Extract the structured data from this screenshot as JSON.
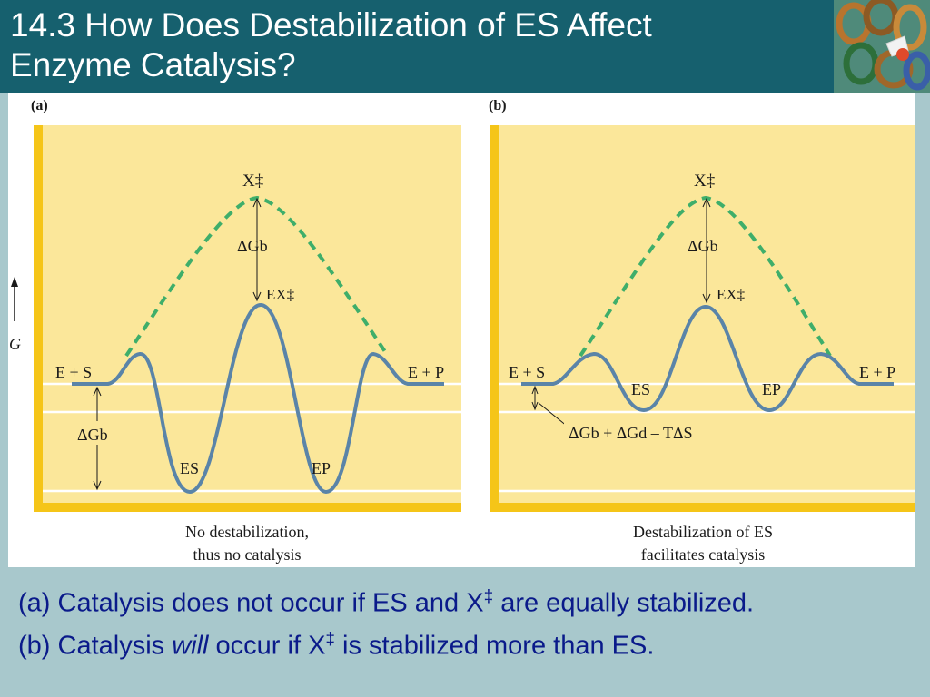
{
  "title": {
    "line1": "14.3 How Does Destabilization of ES Affect",
    "line2": "Enzyme Catalysis?"
  },
  "figure": {
    "axis_label": "G",
    "panel_a": {
      "tag": "(a)",
      "transition_state": "X‡",
      "dg_b_top": "ΔGb",
      "ex_label": "EX‡",
      "left_state": "E + S",
      "right_state": "E + P",
      "es_label": "ES",
      "ep_label": "EP",
      "dg_b_left": "ΔGb",
      "caption_line1": "No destabilization,",
      "caption_line2": "thus no catalysis"
    },
    "panel_b": {
      "tag": "(b)",
      "transition_state": "X‡",
      "dg_b_top": "ΔGb",
      "ex_label": "EX‡",
      "left_state": "E + S",
      "right_state": "E + P",
      "es_label": "ES",
      "ep_label": "EP",
      "dg_formula": "ΔGb + ΔGd – TΔS",
      "caption_line1": "Destabilization of ES",
      "caption_line2": "facilitates catalysis"
    }
  },
  "caption": {
    "line_a_pre": "(a) Catalysis does not occur if ES and X",
    "line_a_sup": "‡",
    "line_a_post": " are equally stabilized.",
    "line_b_pre": "(b)  Catalysis ",
    "line_b_em": "will",
    "line_b_mid": " occur if X",
    "line_b_sup": "‡",
    "line_b_post": " is stabilized more than ES."
  },
  "colors": {
    "title_bar": "#16606e",
    "slide_background": "#a8c8cc",
    "panel_fill": "#fbe79a",
    "panel_edge": "#f5c518",
    "curve": "#5a84a8",
    "dashed_curve": "#3fae6a",
    "caption_text": "#0a1a8a"
  }
}
